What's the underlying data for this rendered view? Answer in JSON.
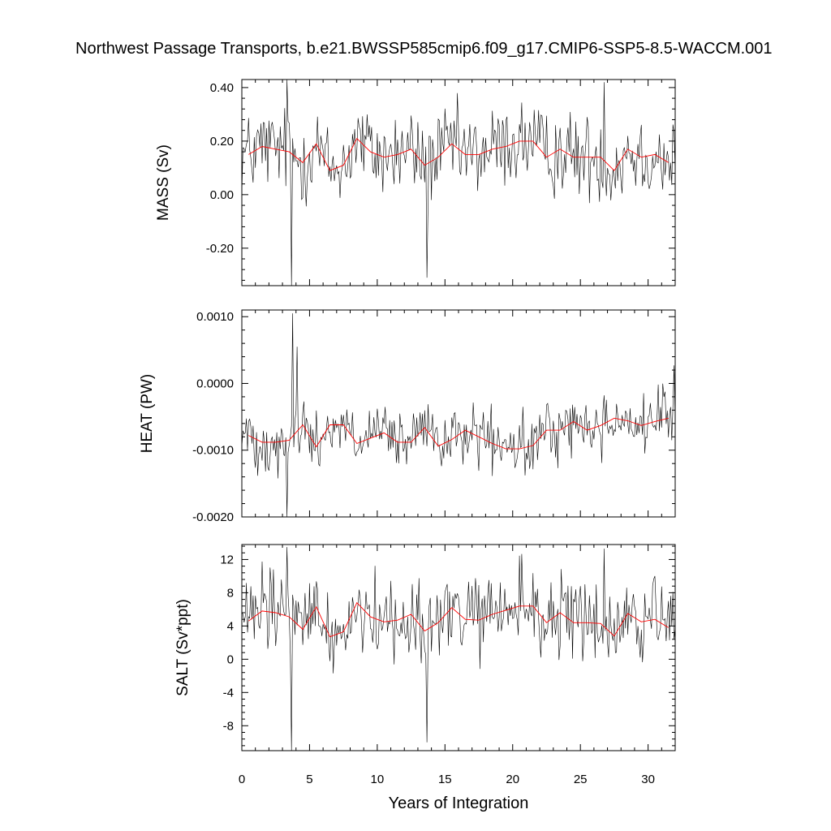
{
  "title": "Northwest Passage Transports, b.e21.BWSSP585cmip6.f09_g17.CMIP6-SSP5-8.5-WACCM.001",
  "xlabel": "Years of Integration",
  "colors": {
    "raw": "#000000",
    "smoothed": "#ff0000",
    "frame": "#000000",
    "background": "#ffffff"
  },
  "chart_data": [
    {
      "type": "line",
      "name": "mass",
      "ylabel": "MASS (Sv)",
      "xlim": [
        0,
        32
      ],
      "ylim": [
        -0.34,
        0.43
      ],
      "xticks": [
        0,
        5,
        10,
        15,
        20,
        25,
        30
      ],
      "yticks": [
        -0.2,
        0.0,
        0.2,
        0.4
      ],
      "ytick_labels": [
        "-0.20",
        "0.00",
        "0.20",
        "0.40"
      ],
      "annual_mean_x": [
        0.5,
        1.5,
        2.5,
        3.5,
        4.5,
        5.5,
        6.5,
        7.5,
        8.5,
        9.5,
        10.5,
        11.5,
        12.5,
        13.5,
        14.5,
        15.5,
        16.5,
        17.5,
        18.5,
        19.5,
        20.5,
        21.5,
        22.5,
        23.5,
        24.5,
        25.5,
        26.5,
        27.5,
        28.5,
        29.5,
        30.5,
        31.5
      ],
      "annual_mean": [
        0.15,
        0.18,
        0.17,
        0.16,
        0.12,
        0.19,
        0.09,
        0.11,
        0.21,
        0.16,
        0.14,
        0.15,
        0.17,
        0.11,
        0.14,
        0.19,
        0.15,
        0.15,
        0.17,
        0.18,
        0.2,
        0.2,
        0.14,
        0.17,
        0.14,
        0.14,
        0.14,
        0.09,
        0.17,
        0.14,
        0.15,
        0.12
      ],
      "monthly_amplitude": 0.1,
      "extremes": [
        {
          "x": 3.65,
          "y": -0.34
        },
        {
          "x": 3.35,
          "y": 0.43
        },
        {
          "x": 13.65,
          "y": -0.31
        },
        {
          "x": 26.75,
          "y": 0.42
        }
      ]
    },
    {
      "type": "line",
      "name": "heat",
      "ylabel": "HEAT (PW)",
      "xlim": [
        0,
        32
      ],
      "ylim": [
        -0.002,
        0.0011
      ],
      "xticks": [
        0,
        5,
        10,
        15,
        20,
        25,
        30
      ],
      "yticks": [
        -0.002,
        -0.001,
        0.0,
        0.001
      ],
      "ytick_labels": [
        "-0.0020",
        "-0.0010",
        "0.0000",
        "0.0010"
      ],
      "annual_mean_x": [
        0.5,
        1.5,
        2.5,
        3.5,
        4.5,
        5.5,
        6.5,
        7.5,
        8.5,
        9.5,
        10.5,
        11.5,
        12.5,
        13.5,
        14.5,
        15.5,
        16.5,
        17.5,
        18.5,
        19.5,
        20.5,
        21.5,
        22.5,
        23.5,
        24.5,
        25.5,
        26.5,
        27.5,
        28.5,
        29.5,
        30.5,
        31.5
      ],
      "annual_mean": [
        -0.00078,
        -0.00088,
        -0.00088,
        -0.00085,
        -0.00062,
        -0.00095,
        -0.00062,
        -0.00062,
        -0.0009,
        -0.00082,
        -0.00074,
        -0.00088,
        -0.00088,
        -0.00066,
        -0.00094,
        -0.00084,
        -0.0007,
        -0.0008,
        -0.0009,
        -0.00098,
        -0.00098,
        -0.00093,
        -0.0007,
        -0.0007,
        -0.00057,
        -0.0007,
        -0.00063,
        -0.00052,
        -0.00056,
        -0.00063,
        -0.00057,
        -0.00052
      ],
      "monthly_amplitude": 0.00028,
      "extremes": [
        {
          "x": 3.3,
          "y": -0.002
        },
        {
          "x": 3.75,
          "y": 0.00105
        },
        {
          "x": 4.1,
          "y": 0.00055
        },
        {
          "x": 31.9,
          "y": 0.00027
        }
      ]
    },
    {
      "type": "line",
      "name": "salt",
      "ylabel": "SALT (Sv*ppt)",
      "xlim": [
        0,
        32
      ],
      "ylim": [
        -11,
        13.8
      ],
      "xticks": [
        0,
        5,
        10,
        15,
        20,
        25,
        30
      ],
      "yticks": [
        -8,
        -4,
        0,
        4,
        8,
        12
      ],
      "ytick_labels": [
        "-8",
        "-4",
        "0",
        "4",
        "8",
        "12"
      ],
      "annual_mean_x": [
        0.5,
        1.5,
        2.5,
        3.5,
        4.5,
        5.5,
        6.5,
        7.5,
        8.5,
        9.5,
        10.5,
        11.5,
        12.5,
        13.5,
        14.5,
        15.5,
        16.5,
        17.5,
        18.5,
        19.5,
        20.5,
        21.5,
        22.5,
        23.5,
        24.5,
        25.5,
        26.5,
        27.5,
        28.5,
        29.5,
        30.5,
        31.5
      ],
      "annual_mean": [
        4.6,
        5.8,
        5.6,
        5.1,
        3.6,
        6.3,
        2.7,
        3.3,
        6.8,
        5.1,
        4.5,
        4.7,
        5.4,
        3.4,
        4.4,
        6.2,
        4.8,
        4.7,
        5.4,
        5.9,
        6.4,
        6.4,
        4.4,
        5.6,
        4.4,
        4.4,
        4.3,
        2.8,
        5.5,
        4.5,
        4.8,
        3.8
      ],
      "monthly_amplitude": 3.2,
      "extremes": [
        {
          "x": 3.65,
          "y": -11.0
        },
        {
          "x": 3.35,
          "y": 13.5
        },
        {
          "x": 13.65,
          "y": -10.0
        },
        {
          "x": 26.75,
          "y": 13.3
        }
      ]
    }
  ]
}
